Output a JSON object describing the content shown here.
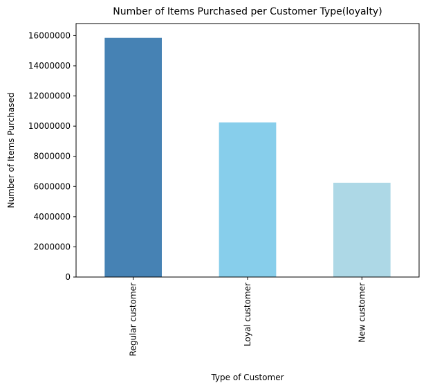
{
  "chart_data": {
    "type": "bar",
    "title": "Number of Items Purchased per Customer Type(loyalty)",
    "xlabel": "Type of Customer",
    "ylabel": "Number of Items Purchased",
    "categories": [
      "Regular customer",
      "Loyal customer",
      "New customer"
    ],
    "values": [
      15850000,
      10250000,
      6250000
    ],
    "colors": [
      "#4682b4",
      "#87ceeb",
      "#add8e6"
    ],
    "ylim": [
      0,
      16800000
    ],
    "yticks": [
      0,
      2000000,
      4000000,
      6000000,
      8000000,
      10000000,
      12000000,
      14000000,
      16000000
    ],
    "ytick_labels": [
      "0",
      "2000000",
      "4000000",
      "6000000",
      "8000000",
      "10000000",
      "12000000",
      "14000000",
      "16000000"
    ],
    "grid": false,
    "legend": false
  }
}
